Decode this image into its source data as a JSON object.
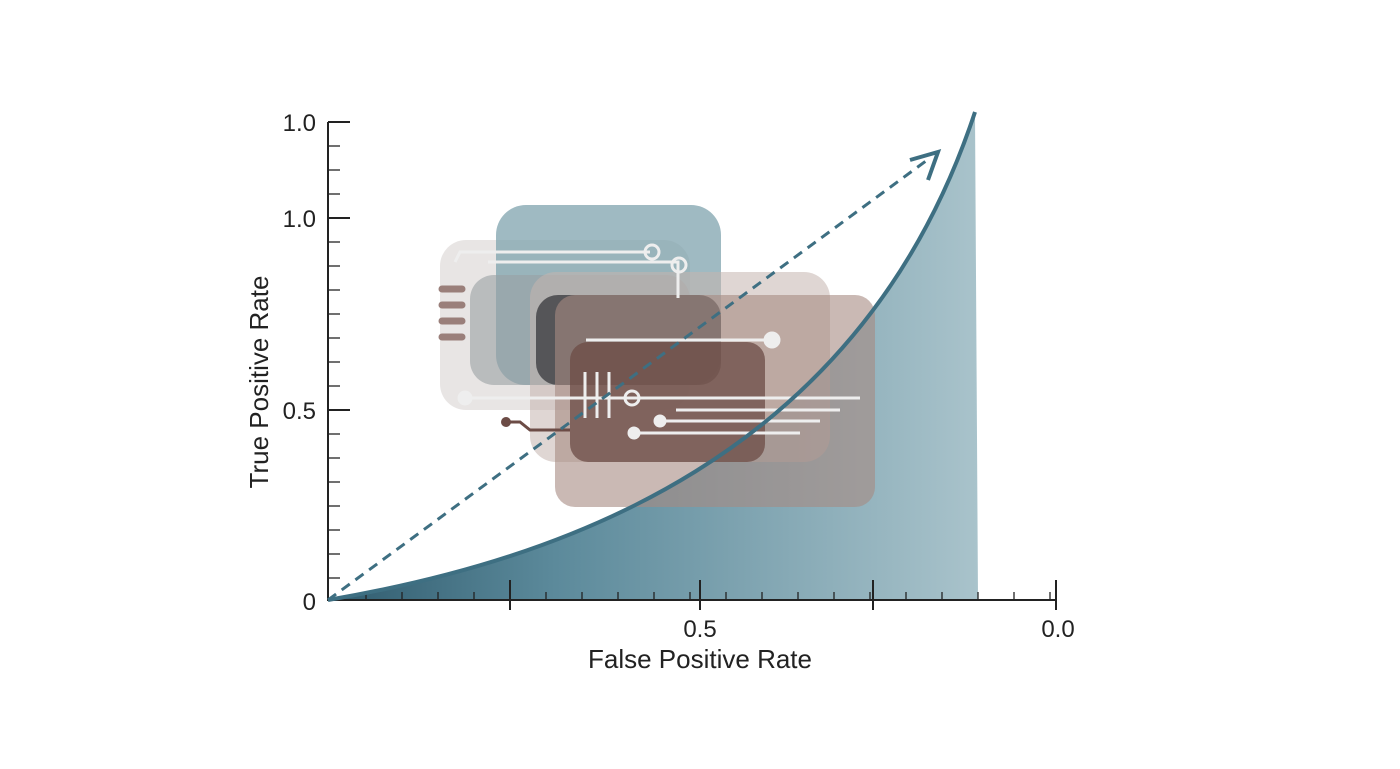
{
  "y_axis": {
    "title": "True Positive Rate",
    "tick_labels": [
      "1.0",
      "1.0",
      "0.5",
      "0"
    ]
  },
  "x_axis": {
    "title": "False Positive Rate",
    "tick_labels": [
      "0.5",
      "0.0"
    ]
  }
}
